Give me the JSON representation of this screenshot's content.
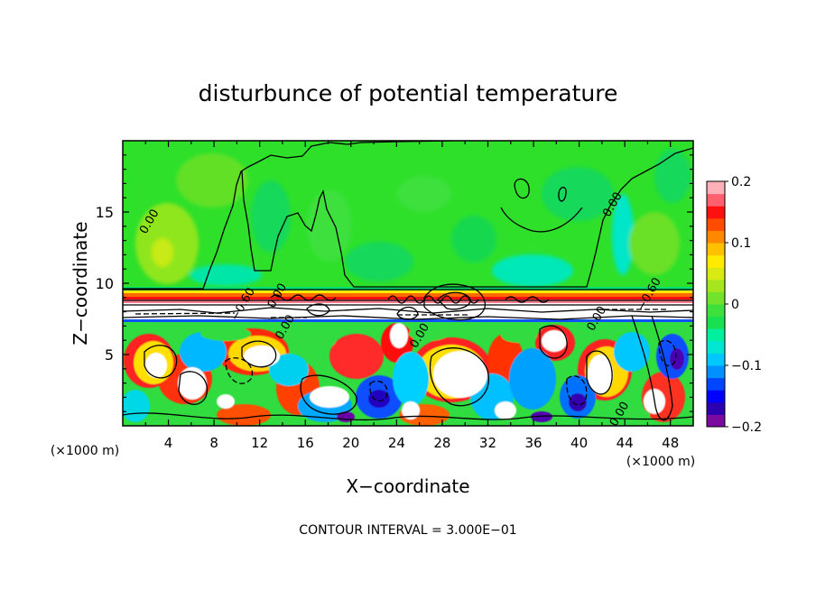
{
  "chart_data": {
    "type": "heatmap",
    "title": "disturbunce of potential temperature",
    "xlabel": "X−coordinate",
    "ylabel": "Z−coordinate",
    "x_unit_label": "(×1000 m)",
    "xlim": [
      0,
      50
    ],
    "ylim": [
      0,
      20
    ],
    "x_ticks": [
      4,
      8,
      12,
      16,
      20,
      24,
      28,
      32,
      36,
      40,
      44,
      48
    ],
    "y_ticks": [
      5,
      10,
      15
    ],
    "colorbar": {
      "range": [
        -0.2,
        0.2
      ],
      "tick_labels": [
        {
          "value": 0.2,
          "label": "0.2"
        },
        {
          "value": 0.1,
          "label": "0.1"
        },
        {
          "value": 0,
          "label": "0"
        },
        {
          "value": -0.1,
          "label": "−0.1"
        },
        {
          "value": -0.2,
          "label": "−0.2"
        }
      ],
      "colors": [
        "#7a0aa0",
        "#2a00b0",
        "#0000ff",
        "#0046ff",
        "#0090ff",
        "#00c8ff",
        "#00e6d0",
        "#00f0a0",
        "#19e050",
        "#3ee03c",
        "#72e22a",
        "#a6e61e",
        "#d8ea12",
        "#ffea00",
        "#ffc000",
        "#ff8800",
        "#ff4c00",
        "#ff1010",
        "#ff6070",
        "#ffb0b8"
      ]
    },
    "contour_labels": [
      {
        "x": 2.6,
        "y": 14.2,
        "text": "0.00"
      },
      {
        "x": 10.8,
        "y": 8.4,
        "text": "−0.60"
      },
      {
        "x": 13.8,
        "y": 9.0,
        "text": "0.00"
      },
      {
        "x": 14.5,
        "y": 6.8,
        "text": "0.00"
      },
      {
        "x": 26.3,
        "y": 6.2,
        "text": "0.00"
      },
      {
        "x": 43.2,
        "y": 15.4,
        "text": "0.00"
      },
      {
        "x": 41.8,
        "y": 7.4,
        "text": "0.00"
      },
      {
        "x": 46.4,
        "y": 9.1,
        "text": "−0.60"
      },
      {
        "x": 43.8,
        "y": 0.7,
        "text": "0.00"
      }
    ],
    "footer": "CONTOUR INTERVAL = 3.000E−01"
  }
}
